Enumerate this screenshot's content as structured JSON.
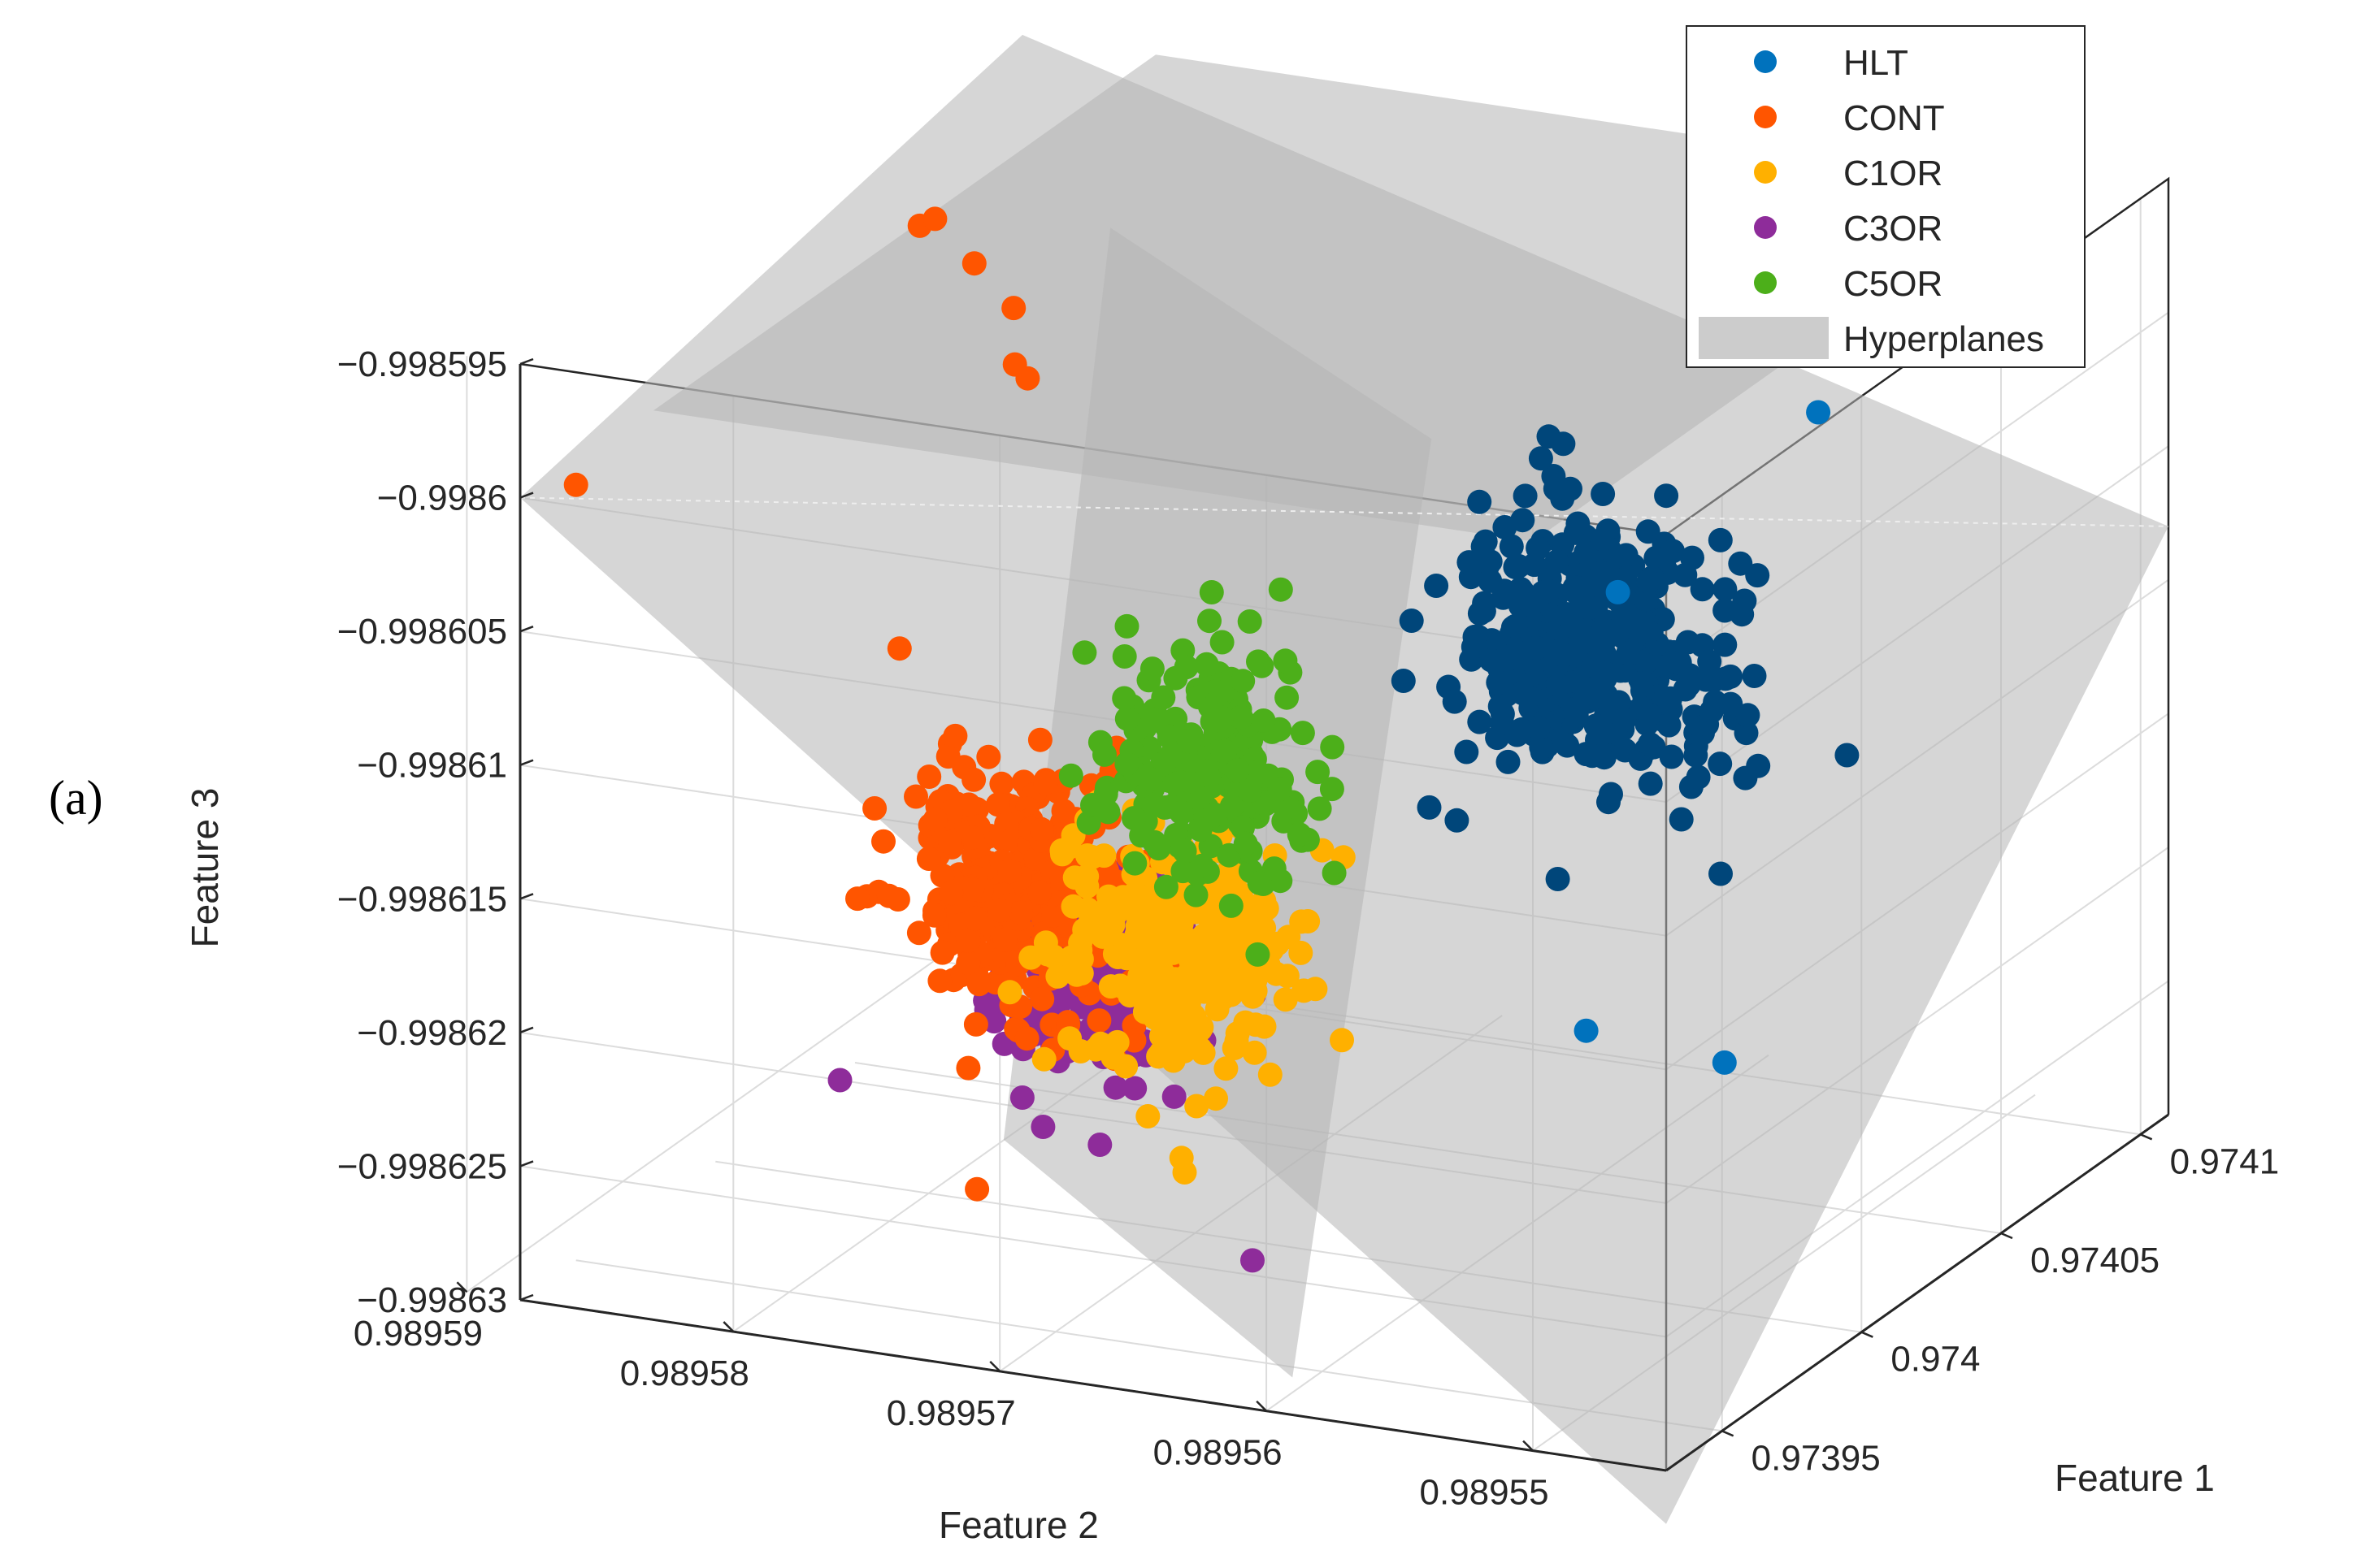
{
  "panel_label": "(a)",
  "colors": {
    "HLT": "#0072BD",
    "HLT_dense": "#00467A",
    "CONT": "#FF5500",
    "C1OR": "#FFB000",
    "C3OR": "#8E2C9A",
    "C5OR": "#4CAF1A",
    "Hyperplanes": "#b4b4b4",
    "grid": "#dcdcdc",
    "axis": "#262626"
  },
  "chart_data": {
    "type": "scatter",
    "projection": "3d",
    "xlabel": "Feature 1",
    "ylabel": "Feature 2",
    "zlabel": "Feature 3",
    "xlim": [
      0.97393,
      0.97411
    ],
    "ylim": [
      0.989545,
      0.989588
    ],
    "zlim": [
      -0.99863,
      -0.998595
    ],
    "x_ticks": [
      "0.97395",
      "0.974",
      "0.97405",
      "0.9741"
    ],
    "x_tick_values": [
      0.97395,
      0.974,
      0.97405,
      0.9741
    ],
    "y_ticks": [
      "0.98959",
      "0.98958",
      "0.98957",
      "0.98956",
      "0.98955"
    ],
    "y_tick_values": [
      0.98959,
      0.98958,
      0.98957,
      0.98956,
      0.98955
    ],
    "z_ticks": [
      "−0.998595",
      "−0.9986",
      "−0.998605",
      "−0.99861",
      "−0.998615",
      "−0.99862",
      "−0.998625",
      "−0.99863"
    ],
    "z_tick_values": [
      -0.998595,
      -0.9986,
      -0.998605,
      -0.99861,
      -0.998615,
      -0.99862,
      -0.998625,
      -0.99863
    ],
    "grid": true,
    "legend_position": "top-right",
    "legend": [
      "HLT",
      "CONT",
      "C1OR",
      "C3OR",
      "C5OR",
      "Hyperplanes"
    ],
    "series": [
      {
        "name": "HLT",
        "cluster": {
          "center": [
            0.974055,
            0.989561,
            -0.998611
          ],
          "spread": [
            6e-06,
            2.5e-06,
            2.5e-06
          ],
          "count": 380
        },
        "outliers": [
          [
            0.97397,
            0.989551,
            -0.998601
          ],
          [
            0.97408,
            0.989555,
            -0.998603
          ],
          [
            0.97393,
            0.989548,
            -0.998614
          ],
          [
            0.97397,
            0.989547,
            -0.998618
          ]
        ]
      },
      {
        "name": "CONT",
        "cluster": {
          "center": [
            0.973985,
            0.989575,
            -0.998617
          ],
          "spread": [
            4e-06,
            2e-06,
            2.2e-06
          ],
          "count": 320
        },
        "outliers": [
          [
            0.974035,
            0.989584,
            -0.998597
          ],
          [
            0.97405,
            0.989585,
            -0.998598
          ],
          [
            0.974045,
            0.989583,
            -0.998599
          ],
          [
            0.97404,
            0.989581,
            -0.9986
          ],
          [
            0.974045,
            0.989581,
            -0.998603
          ],
          [
            0.97405,
            0.989582,
            -0.998603
          ],
          [
            0.97398,
            0.989579,
            -0.998608
          ],
          [
            0.97395,
            0.989588,
            -0.998601
          ],
          [
            0.97396,
            0.989574,
            -0.998626
          ]
        ]
      },
      {
        "name": "C1OR",
        "cluster": {
          "center": [
            0.973985,
            0.989569,
            -0.998618
          ],
          "spread": [
            4e-06,
            2.2e-06,
            2.4e-06
          ],
          "count": 300
        },
        "outliers": []
      },
      {
        "name": "C3OR",
        "cluster": {
          "center": [
            0.973975,
            0.989571,
            -0.998619
          ],
          "spread": [
            4e-06,
            2e-06,
            2e-06
          ],
          "count": 230
        },
        "outliers": [
          [
            0.97393,
            0.989576,
            -0.99862
          ],
          [
            0.973925,
            0.98956,
            -0.998624
          ]
        ]
      },
      {
        "name": "C5OR",
        "cluster": {
          "center": [
            0.974005,
            0.98957,
            -0.998613
          ],
          "spread": [
            4e-06,
            1.8e-06,
            2.2e-06
          ],
          "count": 220
        },
        "outliers": []
      }
    ],
    "hyperplanes": [
      {
        "name": "Hyperplanes",
        "corners": [
          [
            0.97393,
            0.989588,
            -0.9986
          ],
          [
            0.97411,
            0.989588,
            -0.998596
          ],
          [
            0.97411,
            0.989545,
            -0.998608
          ],
          [
            0.97393,
            0.989545,
            -0.998632
          ]
        ]
      },
      {
        "name": "Hyperplanes",
        "corners": [
          [
            0.97393,
            0.989583,
            -0.998596
          ],
          [
            0.97411,
            0.989583,
            -0.998596
          ],
          [
            0.97411,
            0.98955,
            -0.998596
          ],
          [
            0.97393,
            0.98955,
            -0.998596
          ]
        ]
      },
      {
        "name": "Hyperplanes",
        "corners": [
          [
            0.974046,
            0.989578,
            -0.998597
          ],
          [
            0.974056,
            0.989567,
            -0.998604
          ],
          [
            0.973968,
            0.989563,
            -0.998632
          ],
          [
            0.97396,
            0.989573,
            -0.998624
          ]
        ]
      }
    ]
  }
}
